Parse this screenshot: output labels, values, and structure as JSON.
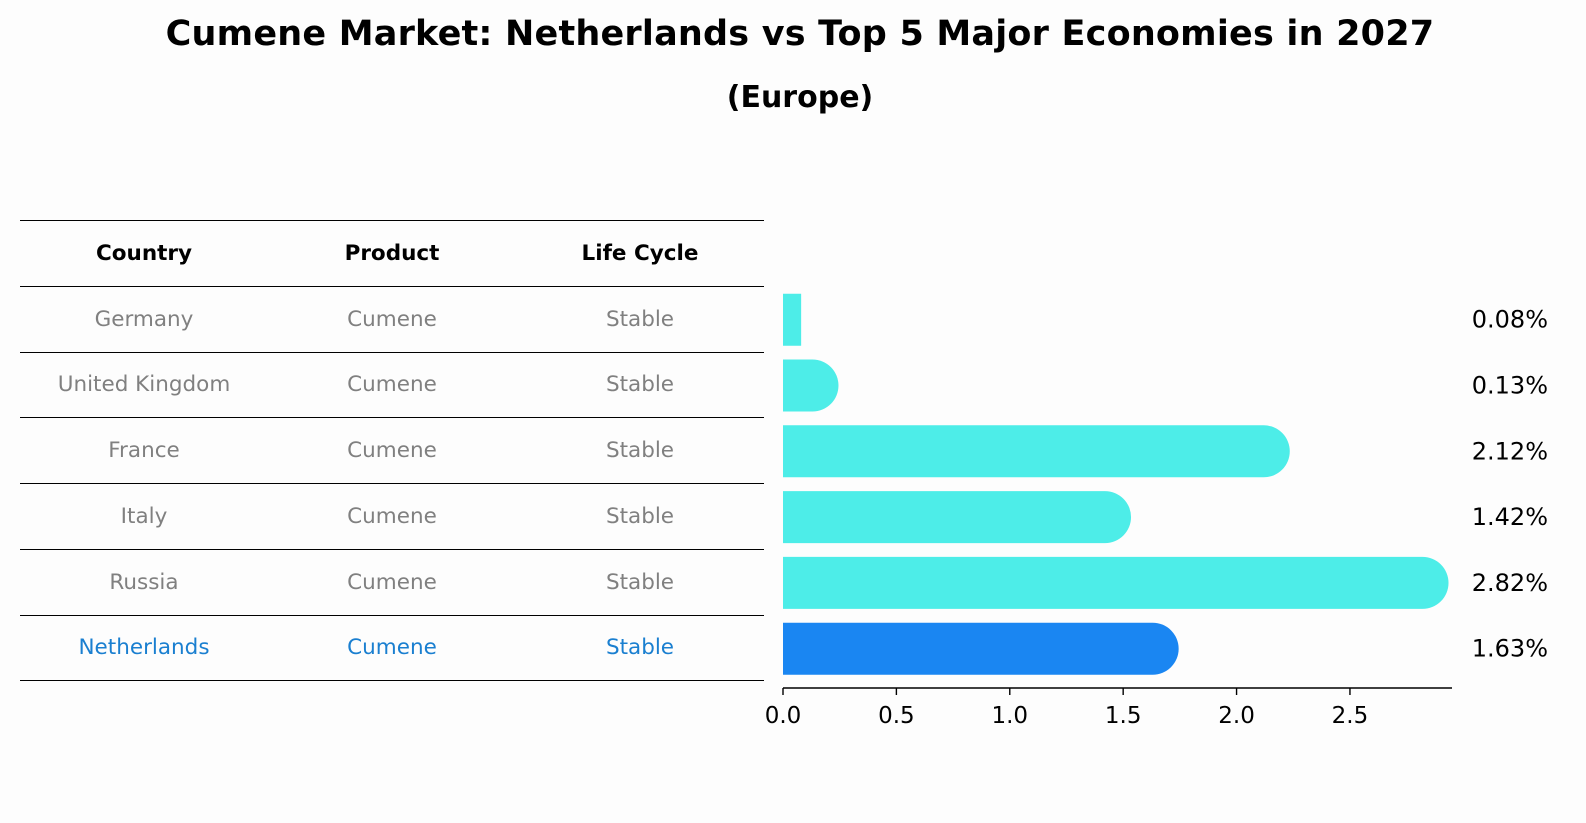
{
  "title": "Cumene Market: Netherlands vs Top 5 Major Economies in 2027",
  "subtitle": "(Europe)",
  "table": {
    "headers": [
      "Country",
      "Product",
      "Life Cycle"
    ],
    "rows": [
      [
        "Germany",
        "Cumene",
        "Stable"
      ],
      [
        "United Kingdom",
        "Cumene",
        "Stable"
      ],
      [
        "France",
        "Cumene",
        "Stable"
      ],
      [
        "Italy",
        "Cumene",
        "Stable"
      ],
      [
        "Russia",
        "Cumene",
        "Stable"
      ],
      [
        "Netherlands",
        "Cumene",
        "Stable"
      ]
    ],
    "highlight_row": 5
  },
  "colors": {
    "bar": "#4dede8",
    "highlight_bar": "#1a86f2",
    "highlight_text": "#1a7fd0",
    "muted_text": "#808080"
  },
  "chart_data": {
    "type": "bar",
    "orientation": "horizontal",
    "categories": [
      "Germany",
      "United Kingdom",
      "France",
      "Italy",
      "Russia",
      "Netherlands"
    ],
    "values": [
      0.08,
      0.13,
      2.12,
      1.42,
      2.82,
      1.63
    ],
    "value_labels": [
      "0.08%",
      "0.13%",
      "2.12%",
      "1.42%",
      "2.82%",
      "1.63%"
    ],
    "highlight": "Netherlands",
    "xlim": [
      0,
      2.95
    ],
    "xticks": [
      0.0,
      0.5,
      1.0,
      1.5,
      2.0,
      2.5
    ],
    "xtick_labels": [
      "0.0",
      "0.5",
      "1.0",
      "1.5",
      "2.0",
      "2.5"
    ],
    "xlabel": "",
    "ylabel": "",
    "grid": false
  }
}
